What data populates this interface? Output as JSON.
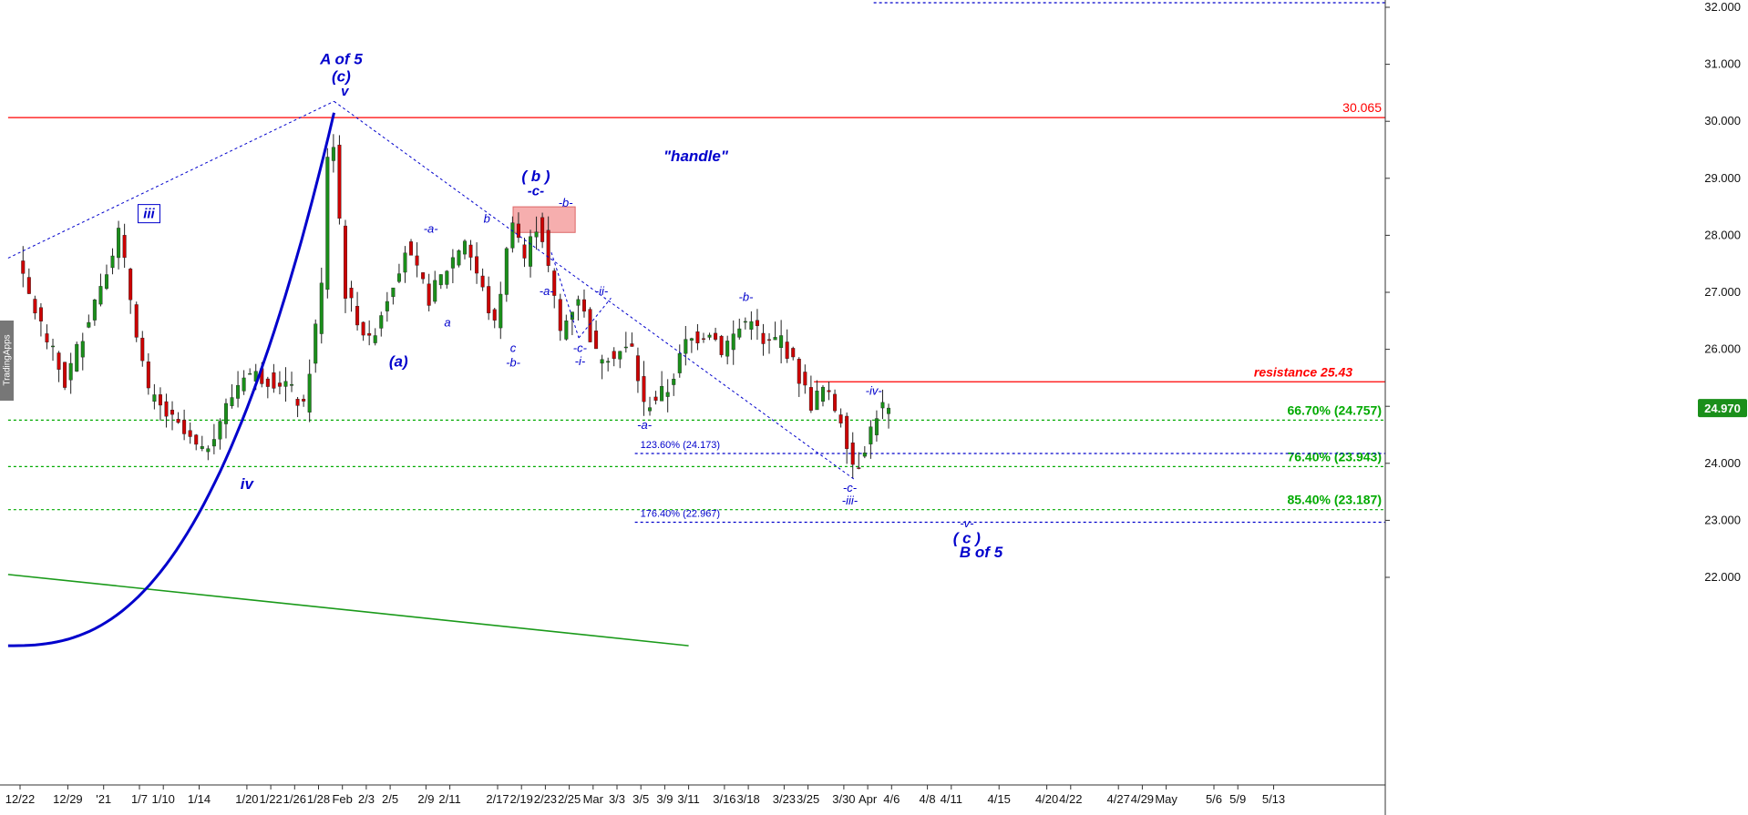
{
  "app": {
    "watermark": "TradingApps"
  },
  "colors": {
    "background": "#ffffff",
    "up_candle": "#1a8f1a",
    "down_candle": "#cc0000",
    "wave_label": "#0000cc",
    "resistance": "#ff0000",
    "fib_green": "#00aa00",
    "fib_blue": "#0000cc",
    "price_badge": "#1a8f1a",
    "zone_fill": "#f4a0a0"
  },
  "chart_data": {
    "type": "candlestick",
    "y_axis": {
      "range": [
        20.8,
        32.15
      ],
      "ticks": [
        "32.000",
        "31.000",
        "30.000",
        "29.000",
        "28.000",
        "27.000",
        "26.000",
        "25.000",
        "24.000",
        "23.000",
        "22.000"
      ]
    },
    "x_axis": {
      "ticks": [
        "12/22",
        "12/29",
        "'21",
        "1/7",
        "1/10",
        "1/14",
        "1/20",
        "1/22",
        "1/26",
        "1/28",
        "Feb",
        "2/3",
        "2/5",
        "2/9",
        "2/11",
        "2/17",
        "2/19",
        "2/23",
        "2/25",
        "Mar",
        "3/3",
        "3/5",
        "3/9",
        "3/11",
        "3/16",
        "3/18",
        "3/23",
        "3/25",
        "3/30",
        "Apr",
        "4/6",
        "4/8",
        "4/11",
        "4/15",
        "4/20",
        "4/22",
        "4/27",
        "4/29",
        "May",
        "5/6",
        "5/9",
        "5/13"
      ],
      "tick_indices": [
        0,
        4,
        7,
        10,
        12,
        15,
        19,
        21,
        23,
        25,
        27,
        29,
        31,
        34,
        36,
        40,
        42,
        44,
        46,
        48,
        50,
        52,
        54,
        56,
        59,
        61,
        64,
        66,
        69,
        71,
        73,
        76,
        78,
        82,
        86,
        88,
        92,
        94,
        96,
        100,
        102,
        105
      ]
    },
    "current_price": "24.970",
    "key_points": [
      {
        "bar": -0.5,
        "value": 27.7
      },
      {
        "bar": 4,
        "value": 25.4
      },
      {
        "bar": 8.5,
        "value": 28.05
      },
      {
        "bar": 11,
        "value": 25.2
      },
      {
        "bar": 15.5,
        "value": 24.15
      },
      {
        "bar": 19,
        "value": 25.6
      },
      {
        "bar": 22.5,
        "value": 25.4
      },
      {
        "bar": 24,
        "value": 24.95
      },
      {
        "bar": 25.5,
        "value": 27.1
      },
      {
        "bar": 26.2,
        "value": 30.35
      },
      {
        "bar": 27.5,
        "value": 27.0
      },
      {
        "bar": 29.5,
        "value": 26.1
      },
      {
        "bar": 32.5,
        "value": 27.75
      },
      {
        "bar": 34.5,
        "value": 26.9
      },
      {
        "bar": 37.5,
        "value": 27.95
      },
      {
        "bar": 40,
        "value": 26.4
      },
      {
        "bar": 41.5,
        "value": 28.35
      },
      {
        "bar": 42.5,
        "value": 27.6
      },
      {
        "bar": 43.7,
        "value": 28.3
      },
      {
        "bar": 45.5,
        "value": 26.3
      },
      {
        "bar": 47,
        "value": 26.95
      },
      {
        "bar": 48.5,
        "value": 25.9
      },
      {
        "bar": 51.5,
        "value": 26.0
      },
      {
        "bar": 52.5,
        "value": 25.0
      },
      {
        "bar": 54.5,
        "value": 25.3
      },
      {
        "bar": 56,
        "value": 26.1
      },
      {
        "bar": 58,
        "value": 26.35
      },
      {
        "bar": 59,
        "value": 26.0
      },
      {
        "bar": 61.5,
        "value": 26.6
      },
      {
        "bar": 62.5,
        "value": 26.05
      },
      {
        "bar": 64,
        "value": 26.2
      },
      {
        "bar": 66.5,
        "value": 25.05
      },
      {
        "bar": 67.5,
        "value": 25.3
      },
      {
        "bar": 69,
        "value": 24.8
      },
      {
        "bar": 70.2,
        "value": 23.85
      },
      {
        "bar": 70.8,
        "value": 24.2
      },
      {
        "bar": 72.3,
        "value": 25.05
      },
      {
        "bar": 72.8,
        "value": 24.9
      }
    ],
    "horizontal_lines": [
      {
        "id": "resistance-30065",
        "value": 30.065,
        "color": "#ff0000",
        "style": "solid",
        "x_start_bar": -1,
        "label": "30.065"
      },
      {
        "id": "resistance-2543",
        "value": 25.43,
        "color": "#ff0000",
        "style": "solid",
        "x_start_bar": 66.5,
        "label": "resistance 25.43"
      },
      {
        "id": "fib-6670",
        "value": 24.757,
        "color": "#00aa00",
        "style": "dotted",
        "x_start_bar": -1,
        "label": "66.70% (24.757)"
      },
      {
        "id": "fib-7640",
        "value": 23.943,
        "color": "#00aa00",
        "style": "dotted",
        "x_start_bar": -1,
        "label": "76.40% (23.943)"
      },
      {
        "id": "fib-8540",
        "value": 23.187,
        "color": "#00aa00",
        "style": "dotted",
        "x_start_bar": -1,
        "label": "85.40% (23.187)"
      },
      {
        "id": "ext-12360",
        "value": 24.173,
        "color": "#0000cc",
        "style": "dotted",
        "x_start_bar": 51.5,
        "label": "123.60% (24.173)"
      },
      {
        "id": "ext-17640",
        "value": 22.967,
        "color": "#0000cc",
        "style": "dotted",
        "x_start_bar": 51.5,
        "label": "176.40% (22.967)"
      },
      {
        "id": "top-dotted",
        "value": 32.08,
        "color": "#0000cc",
        "style": "dotted",
        "x_start_bar": 71.5,
        "label": ""
      }
    ],
    "wave_labels": [
      {
        "text": "iii",
        "bar": 10.8,
        "value": 28.3,
        "boxed": true,
        "size": 15
      },
      {
        "text": "iv",
        "bar": 19,
        "value": 23.55,
        "size": 17
      },
      {
        "text": "A of 5",
        "bar": 26.9,
        "value": 31.0,
        "size": 17
      },
      {
        "text": "(c)",
        "bar": 26.9,
        "value": 30.7,
        "size": 17
      },
      {
        "text": "v",
        "bar": 27.2,
        "value": 30.45,
        "size": 15
      },
      {
        "text": "(a)",
        "bar": 31.7,
        "value": 25.7,
        "size": 17
      },
      {
        "text": "-a-",
        "bar": 34.4,
        "value": 28.05,
        "size": 13
      },
      {
        "text": "a",
        "bar": 35.8,
        "value": 26.4,
        "size": 13
      },
      {
        "text": "b",
        "bar": 39.1,
        "value": 28.22,
        "size": 13
      },
      {
        "text": "c",
        "bar": 41.3,
        "value": 25.95,
        "size": 13
      },
      {
        "text": "-b-",
        "bar": 41.3,
        "value": 25.7,
        "size": 13
      },
      {
        "text": "( b )",
        "bar": 43.2,
        "value": 28.95,
        "size": 17
      },
      {
        "text": "-c-",
        "bar": 43.2,
        "value": 28.7,
        "size": 15
      },
      {
        "text": "-a-",
        "bar": 44.1,
        "value": 26.95,
        "size": 13
      },
      {
        "text": "-b-",
        "bar": 45.7,
        "value": 28.5,
        "size": 13
      },
      {
        "text": "-ii-",
        "bar": 48.7,
        "value": 26.95,
        "size": 13
      },
      {
        "text": "-c-",
        "bar": 46.9,
        "value": 25.95,
        "size": 13
      },
      {
        "text": "-i-",
        "bar": 46.9,
        "value": 25.72,
        "size": 13
      },
      {
        "text": "-a-",
        "bar": 52.3,
        "value": 24.6,
        "size": 13
      },
      {
        "text": "-b-",
        "bar": 60.8,
        "value": 26.85,
        "size": 13
      },
      {
        "text": "-c-",
        "bar": 69.5,
        "value": 23.5,
        "size": 13
      },
      {
        "text": "-iii-",
        "bar": 69.5,
        "value": 23.28,
        "size": 13
      },
      {
        "text": "-iv-",
        "bar": 71.5,
        "value": 25.2,
        "size": 13
      },
      {
        "text": "-v-",
        "bar": 79.3,
        "value": 22.88,
        "size": 13
      },
      {
        "text": "( c )",
        "bar": 79.3,
        "value": 22.6,
        "size": 17
      },
      {
        "text": "B of 5",
        "bar": 80.5,
        "value": 22.35,
        "size": 17
      },
      {
        "text": "\"handle\"",
        "bar": 56.6,
        "value": 29.3,
        "size": 17
      }
    ],
    "dotted_trendlines": [
      {
        "from": {
          "bar": -1,
          "value": 27.6
        },
        "to": {
          "bar": 26.3,
          "value": 30.35
        }
      },
      {
        "from": {
          "bar": 26.3,
          "value": 30.35
        },
        "to": {
          "bar": 70.0,
          "value": 23.7
        }
      },
      {
        "from": {
          "bar": 44.5,
          "value": 27.7
        },
        "to": {
          "bar": 46.8,
          "value": 26.2
        }
      },
      {
        "from": {
          "bar": 46.8,
          "value": 26.2
        },
        "to": {
          "bar": 49.5,
          "value": 26.9
        }
      }
    ],
    "green_trendline": {
      "from": {
        "bar": -1,
        "value": 22.05
      },
      "to": {
        "bar": 56,
        "value": 20.8
      }
    },
    "parabolic_curve": {
      "from": {
        "bar": -1,
        "value": 20.8
      },
      "to": {
        "bar": 26.3,
        "value": 30.15
      }
    },
    "zone": {
      "x_bars": [
        41.3,
        46.5
      ],
      "y_range": [
        28.05,
        28.5
      ]
    }
  }
}
